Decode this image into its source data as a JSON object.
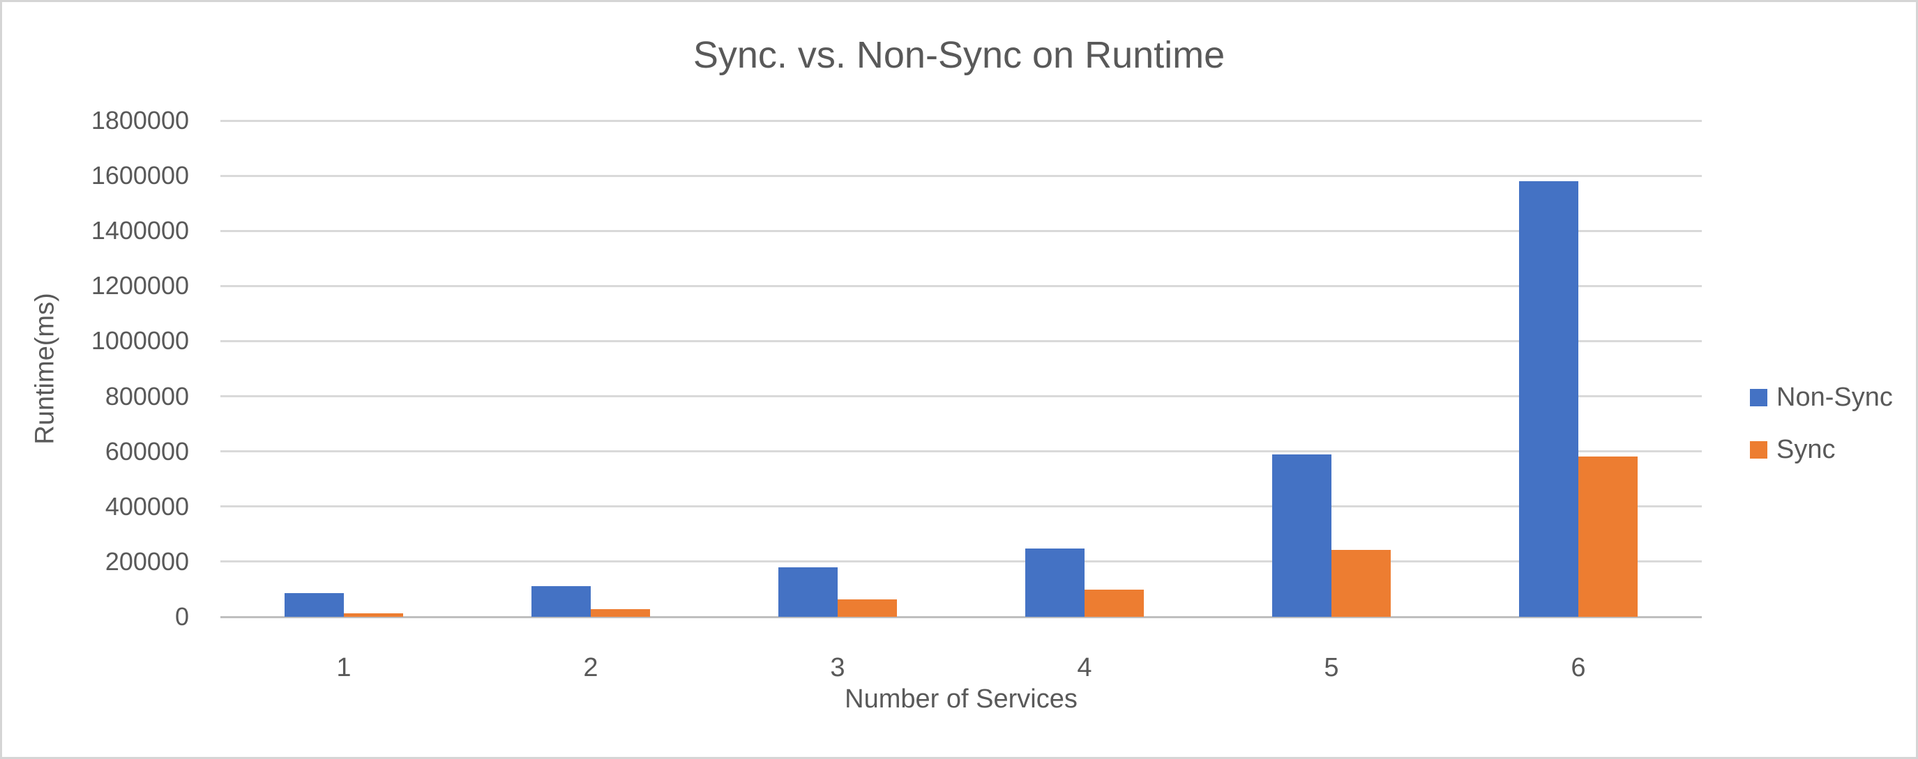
{
  "chart_data": {
    "type": "bar",
    "title": "Sync. vs. Non-Sync on Runtime",
    "xlabel": "Number of Services",
    "ylabel": "Runtime(ms)",
    "categories": [
      "1",
      "2",
      "3",
      "4",
      "5",
      "6"
    ],
    "series": [
      {
        "name": "Non-Sync",
        "color": "#4472C4",
        "values": [
          87000,
          112000,
          180000,
          248000,
          589000,
          1580000
        ]
      },
      {
        "name": "Sync",
        "color": "#ED7D31",
        "values": [
          13000,
          27000,
          64000,
          99000,
          242000,
          581000
        ]
      }
    ],
    "ylim": [
      0,
      1800000
    ],
    "ytick_step": 200000,
    "ytick_labels": [
      "0",
      "200000",
      "400000",
      "600000",
      "800000",
      "1000000",
      "1200000",
      "1400000",
      "1600000",
      "1800000"
    ],
    "grid": true,
    "legend_position": "right",
    "colors": {
      "gridline": "#D9D9D9",
      "axis_line": "#BFBFBF",
      "text": "#595959",
      "frame_border": "#D5D5D5",
      "background": "#FFFFFF"
    }
  }
}
